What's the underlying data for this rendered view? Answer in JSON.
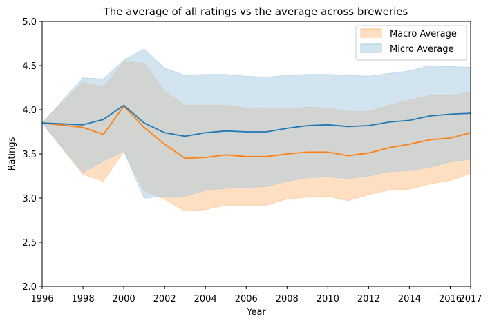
{
  "chart_data": {
    "type": "line",
    "title": "The average of all ratings vs the average across breweries",
    "xlabel": "Year",
    "ylabel": "Ratings",
    "xlim": [
      1996,
      2017
    ],
    "ylim": [
      2.0,
      5.0
    ],
    "xticks": [
      1996,
      1998,
      2000,
      2002,
      2004,
      2006,
      2008,
      2010,
      2012,
      2014,
      2016,
      2017
    ],
    "yticks": [
      "2.0",
      "2.5",
      "3.0",
      "3.5",
      "4.0",
      "4.5",
      "5.0"
    ],
    "grid": false,
    "legend_position": "top-right",
    "x": [
      1996,
      1998,
      1999,
      2000,
      2001,
      2002,
      2003,
      2004,
      2005,
      2006,
      2007,
      2008,
      2009,
      2010,
      2011,
      2012,
      2013,
      2014,
      2015,
      2016,
      2017
    ],
    "series": [
      {
        "name": "Macro Average",
        "color": "#ff7f0e",
        "band_color": "#ffbf86",
        "values": [
          3.85,
          3.8,
          3.72,
          4.04,
          3.8,
          3.61,
          3.45,
          3.46,
          3.49,
          3.47,
          3.47,
          3.5,
          3.52,
          3.52,
          3.48,
          3.51,
          3.57,
          3.61,
          3.66,
          3.68,
          3.74
        ],
        "upper": [
          3.85,
          4.31,
          4.26,
          4.54,
          4.53,
          4.21,
          4.05,
          4.05,
          4.05,
          4.02,
          4.01,
          4.01,
          4.03,
          4.02,
          3.98,
          3.98,
          4.05,
          4.11,
          4.16,
          4.16,
          4.2
        ],
        "lower": [
          3.85,
          3.27,
          3.19,
          3.53,
          3.08,
          2.99,
          2.85,
          2.87,
          2.92,
          2.92,
          2.92,
          2.99,
          3.01,
          3.02,
          2.97,
          3.04,
          3.09,
          3.1,
          3.16,
          3.2,
          3.28
        ]
      },
      {
        "name": "Micro Average",
        "color": "#1f77b4",
        "band_color": "#a6c9e2",
        "values": [
          3.85,
          3.83,
          3.89,
          4.05,
          3.85,
          3.74,
          3.7,
          3.74,
          3.76,
          3.75,
          3.75,
          3.79,
          3.82,
          3.83,
          3.81,
          3.82,
          3.86,
          3.88,
          3.93,
          3.95,
          3.96
        ],
        "upper": [
          3.85,
          4.36,
          4.35,
          4.56,
          4.69,
          4.47,
          4.39,
          4.4,
          4.4,
          4.38,
          4.37,
          4.39,
          4.4,
          4.4,
          4.39,
          4.38,
          4.41,
          4.44,
          4.5,
          4.49,
          4.48
        ],
        "lower": [
          3.85,
          3.29,
          3.42,
          3.53,
          3.0,
          3.02,
          3.02,
          3.09,
          3.11,
          3.12,
          3.13,
          3.19,
          3.23,
          3.24,
          3.22,
          3.25,
          3.3,
          3.31,
          3.35,
          3.41,
          3.44
        ]
      }
    ]
  }
}
